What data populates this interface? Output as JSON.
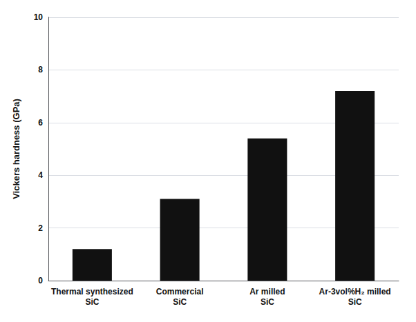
{
  "chart_data": {
    "type": "bar",
    "categories": [
      "Thermal synthesized\nSiC",
      "Commercial\nSiC",
      "Ar milled\nSiC",
      "Ar-3vol%H₂ milled\nSiC"
    ],
    "values": [
      1.2,
      3.1,
      5.4,
      7.2
    ],
    "color": "#111111",
    "ylabel": "Vickers hardness (GPa)",
    "ylim": [
      0,
      10
    ],
    "yticks": [
      0,
      2,
      4,
      6,
      8,
      10
    ],
    "grid": true
  }
}
